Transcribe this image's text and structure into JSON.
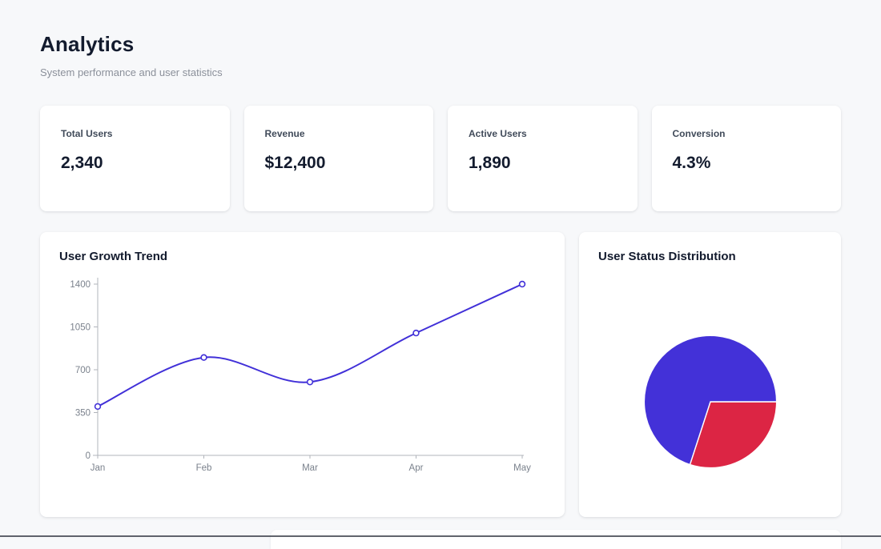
{
  "page": {
    "title": "Analytics",
    "subtitle": "System performance and user statistics"
  },
  "stats": [
    {
      "label": "Total Users",
      "value": "2,340"
    },
    {
      "label": "Revenue",
      "value": "$12,400"
    },
    {
      "label": "Active Users",
      "value": "1,890"
    },
    {
      "label": "Conversion",
      "value": "4.3%"
    }
  ],
  "colors": {
    "accent_line": "#4130d8",
    "pie_blue": "#4331d8",
    "pie_red": "#dc2544",
    "axis": "#b0b4bb",
    "tick_text": "#7a818c"
  },
  "chart_data": [
    {
      "type": "line",
      "title": "User Growth Trend",
      "x": [
        "Jan",
        "Feb",
        "Mar",
        "Apr",
        "May"
      ],
      "values": [
        400,
        800,
        600,
        1000,
        1400
      ],
      "yticks": [
        0,
        350,
        700,
        1050,
        1400
      ],
      "ylim": [
        0,
        1400
      ],
      "xlabel": "",
      "ylabel": "",
      "grid": false,
      "legend": "none",
      "line_color": "#4130d8",
      "marker": "open-circle"
    },
    {
      "type": "pie",
      "title": "User Status Distribution",
      "slices": [
        {
          "name": "red-segment",
          "value": 30,
          "color": "#dc2544"
        },
        {
          "name": "blue-segment",
          "value": 70,
          "color": "#4331d8"
        }
      ],
      "start_angle_deg": 0,
      "direction": "clockwise",
      "legend": "none"
    }
  ]
}
